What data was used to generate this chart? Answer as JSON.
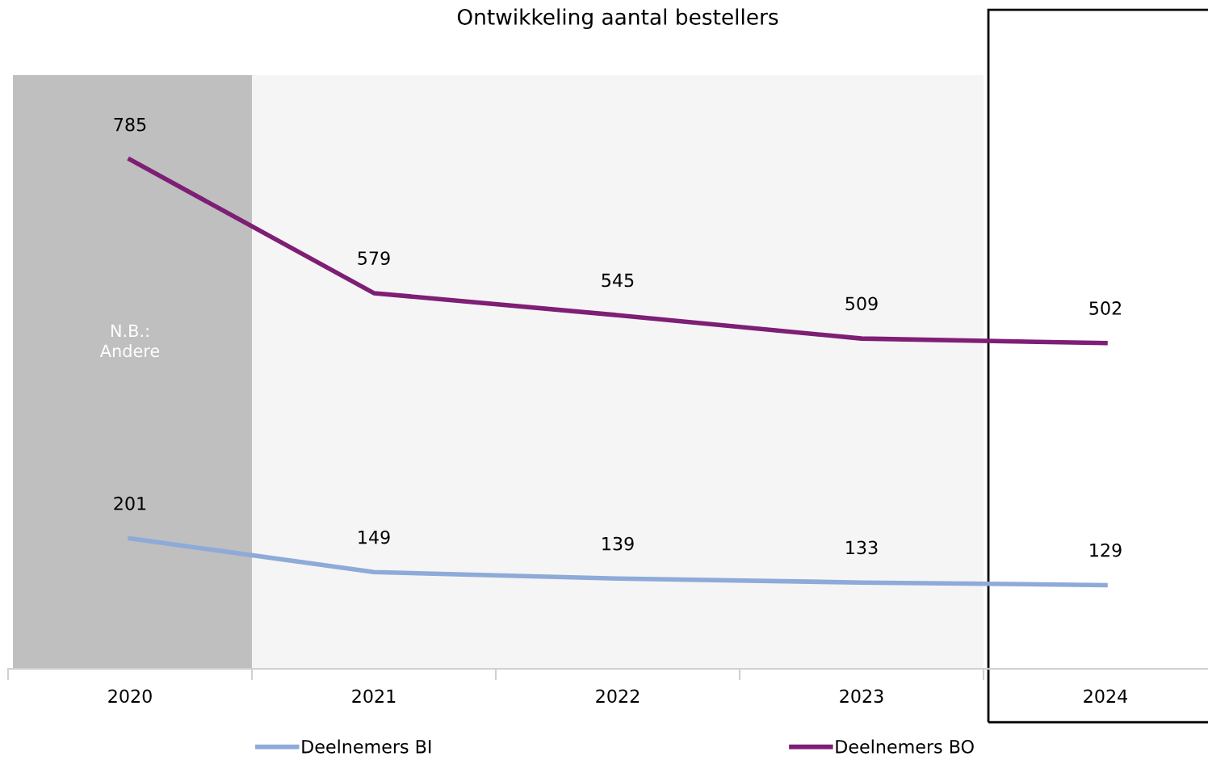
{
  "chart_data": {
    "type": "line",
    "title": "Ontwikkeling aantal bestellers",
    "categories": [
      "2020",
      "2021",
      "2022",
      "2023",
      "2024"
    ],
    "series": [
      {
        "name": "Deelnemers BI",
        "color": "#8eaad8",
        "values": [
          201,
          149,
          139,
          133,
          129
        ]
      },
      {
        "name": "Deelnemers BO",
        "color": "#7e1e74",
        "values": [
          785,
          579,
          545,
          509,
          502
        ]
      }
    ],
    "ylim": [
      0,
      915
    ],
    "tick_labels": "x",
    "data_labels": true,
    "bands": [
      {
        "axis": "x",
        "from": "2020",
        "to": "2020",
        "label": "N.B.:\nAndere",
        "color": "#bfbfbf"
      },
      {
        "axis": "x",
        "from": "2021",
        "to": "2023",
        "color": "#f5f5f5"
      }
    ],
    "grid": false,
    "legend": "bottom",
    "marker": "none",
    "line_style": "solid"
  }
}
